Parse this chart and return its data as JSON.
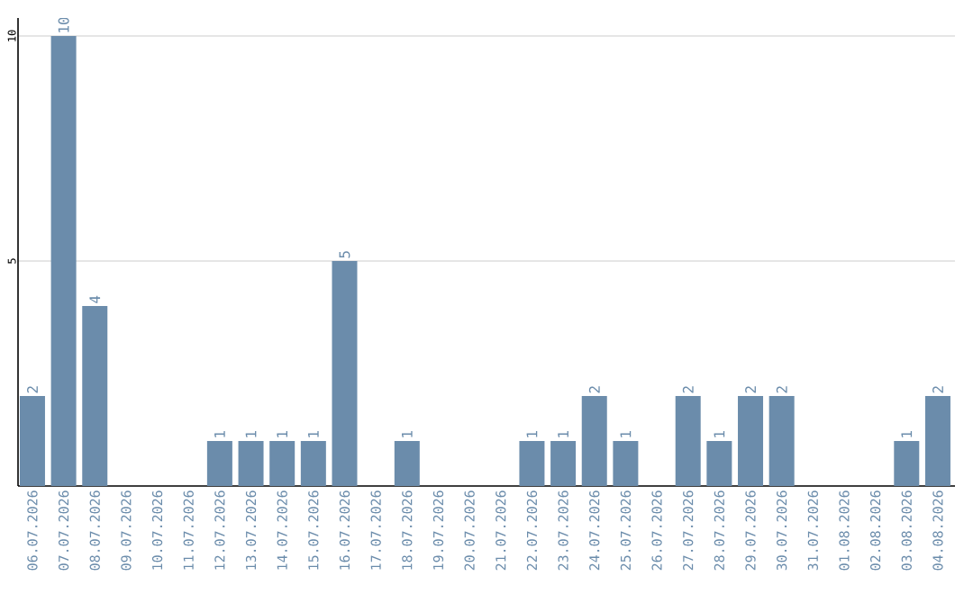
{
  "chart_data": {
    "type": "bar",
    "categories": [
      "06.07.2026",
      "07.07.2026",
      "08.07.2026",
      "09.07.2026",
      "10.07.2026",
      "11.07.2026",
      "12.07.2026",
      "13.07.2026",
      "14.07.2026",
      "15.07.2026",
      "16.07.2026",
      "17.07.2026",
      "18.07.2026",
      "19.07.2026",
      "20.07.2026",
      "21.07.2026",
      "22.07.2026",
      "23.07.2026",
      "24.07.2026",
      "25.07.2026",
      "26.07.2026",
      "27.07.2026",
      "28.07.2026",
      "29.07.2026",
      "30.07.2026",
      "31.07.2026",
      "01.08.2026",
      "02.08.2026",
      "03.08.2026",
      "04.08.2026"
    ],
    "values": [
      2,
      10,
      4,
      0,
      0,
      0,
      1,
      1,
      1,
      1,
      5,
      0,
      1,
      0,
      0,
      0,
      1,
      1,
      2,
      1,
      0,
      2,
      1,
      2,
      2,
      0,
      0,
      0,
      1,
      2
    ],
    "value_labels": [
      "2",
      "10",
      "4",
      null,
      null,
      null,
      "1",
      "1",
      "1",
      "1",
      "5",
      null,
      "1",
      null,
      null,
      null,
      "1",
      "1",
      "2",
      "1",
      null,
      "2",
      "1",
      "2",
      "2",
      null,
      null,
      null,
      "1",
      "2"
    ],
    "color": "#6b8cab",
    "ylim": [
      0,
      10.4
    ],
    "yticks": [
      5,
      10
    ],
    "grid": "y"
  }
}
